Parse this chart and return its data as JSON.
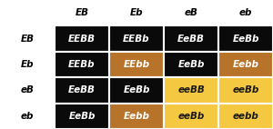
{
  "col_headers": [
    "EB",
    "Eb",
    "eB",
    "eb"
  ],
  "row_headers": [
    "EB",
    "Eb",
    "eB",
    "eb"
  ],
  "cells": [
    [
      "EEBB",
      "EEBb",
      "EeBB",
      "EeBb"
    ],
    [
      "EEBb",
      "EEbb",
      "EeBb",
      "Eebb"
    ],
    [
      "EeBB",
      "EeBb",
      "eeBB",
      "eeBb"
    ],
    [
      "EeBb",
      "Eebb",
      "eeBb",
      "eebb"
    ]
  ],
  "cell_colors": [
    [
      "#0a0a0a",
      "#0a0a0a",
      "#0a0a0a",
      "#0a0a0a"
    ],
    [
      "#0a0a0a",
      "#b8732a",
      "#0a0a0a",
      "#b8732a"
    ],
    [
      "#0a0a0a",
      "#0a0a0a",
      "#f5c842",
      "#f5c842"
    ],
    [
      "#0a0a0a",
      "#b8732a",
      "#f5c842",
      "#f5c842"
    ]
  ],
  "cell_text_colors": [
    [
      "#ffffff",
      "#ffffff",
      "#ffffff",
      "#ffffff"
    ],
    [
      "#ffffff",
      "#ffffff",
      "#ffffff",
      "#ffffff"
    ],
    [
      "#ffffff",
      "#ffffff",
      "#1a1a1a",
      "#1a1a1a"
    ],
    [
      "#ffffff",
      "#ffffff",
      "#1a1a1a",
      "#1a1a1a"
    ]
  ],
  "header_bg": "#ffffff",
  "header_text_color": "#000000",
  "grid_color": "#ffffff",
  "font_size": 7.5,
  "header_font_size": 7.5,
  "fig_bg": "#ffffff",
  "n_rows": 4,
  "n_cols": 4,
  "total_cols": 5,
  "total_rows": 5
}
